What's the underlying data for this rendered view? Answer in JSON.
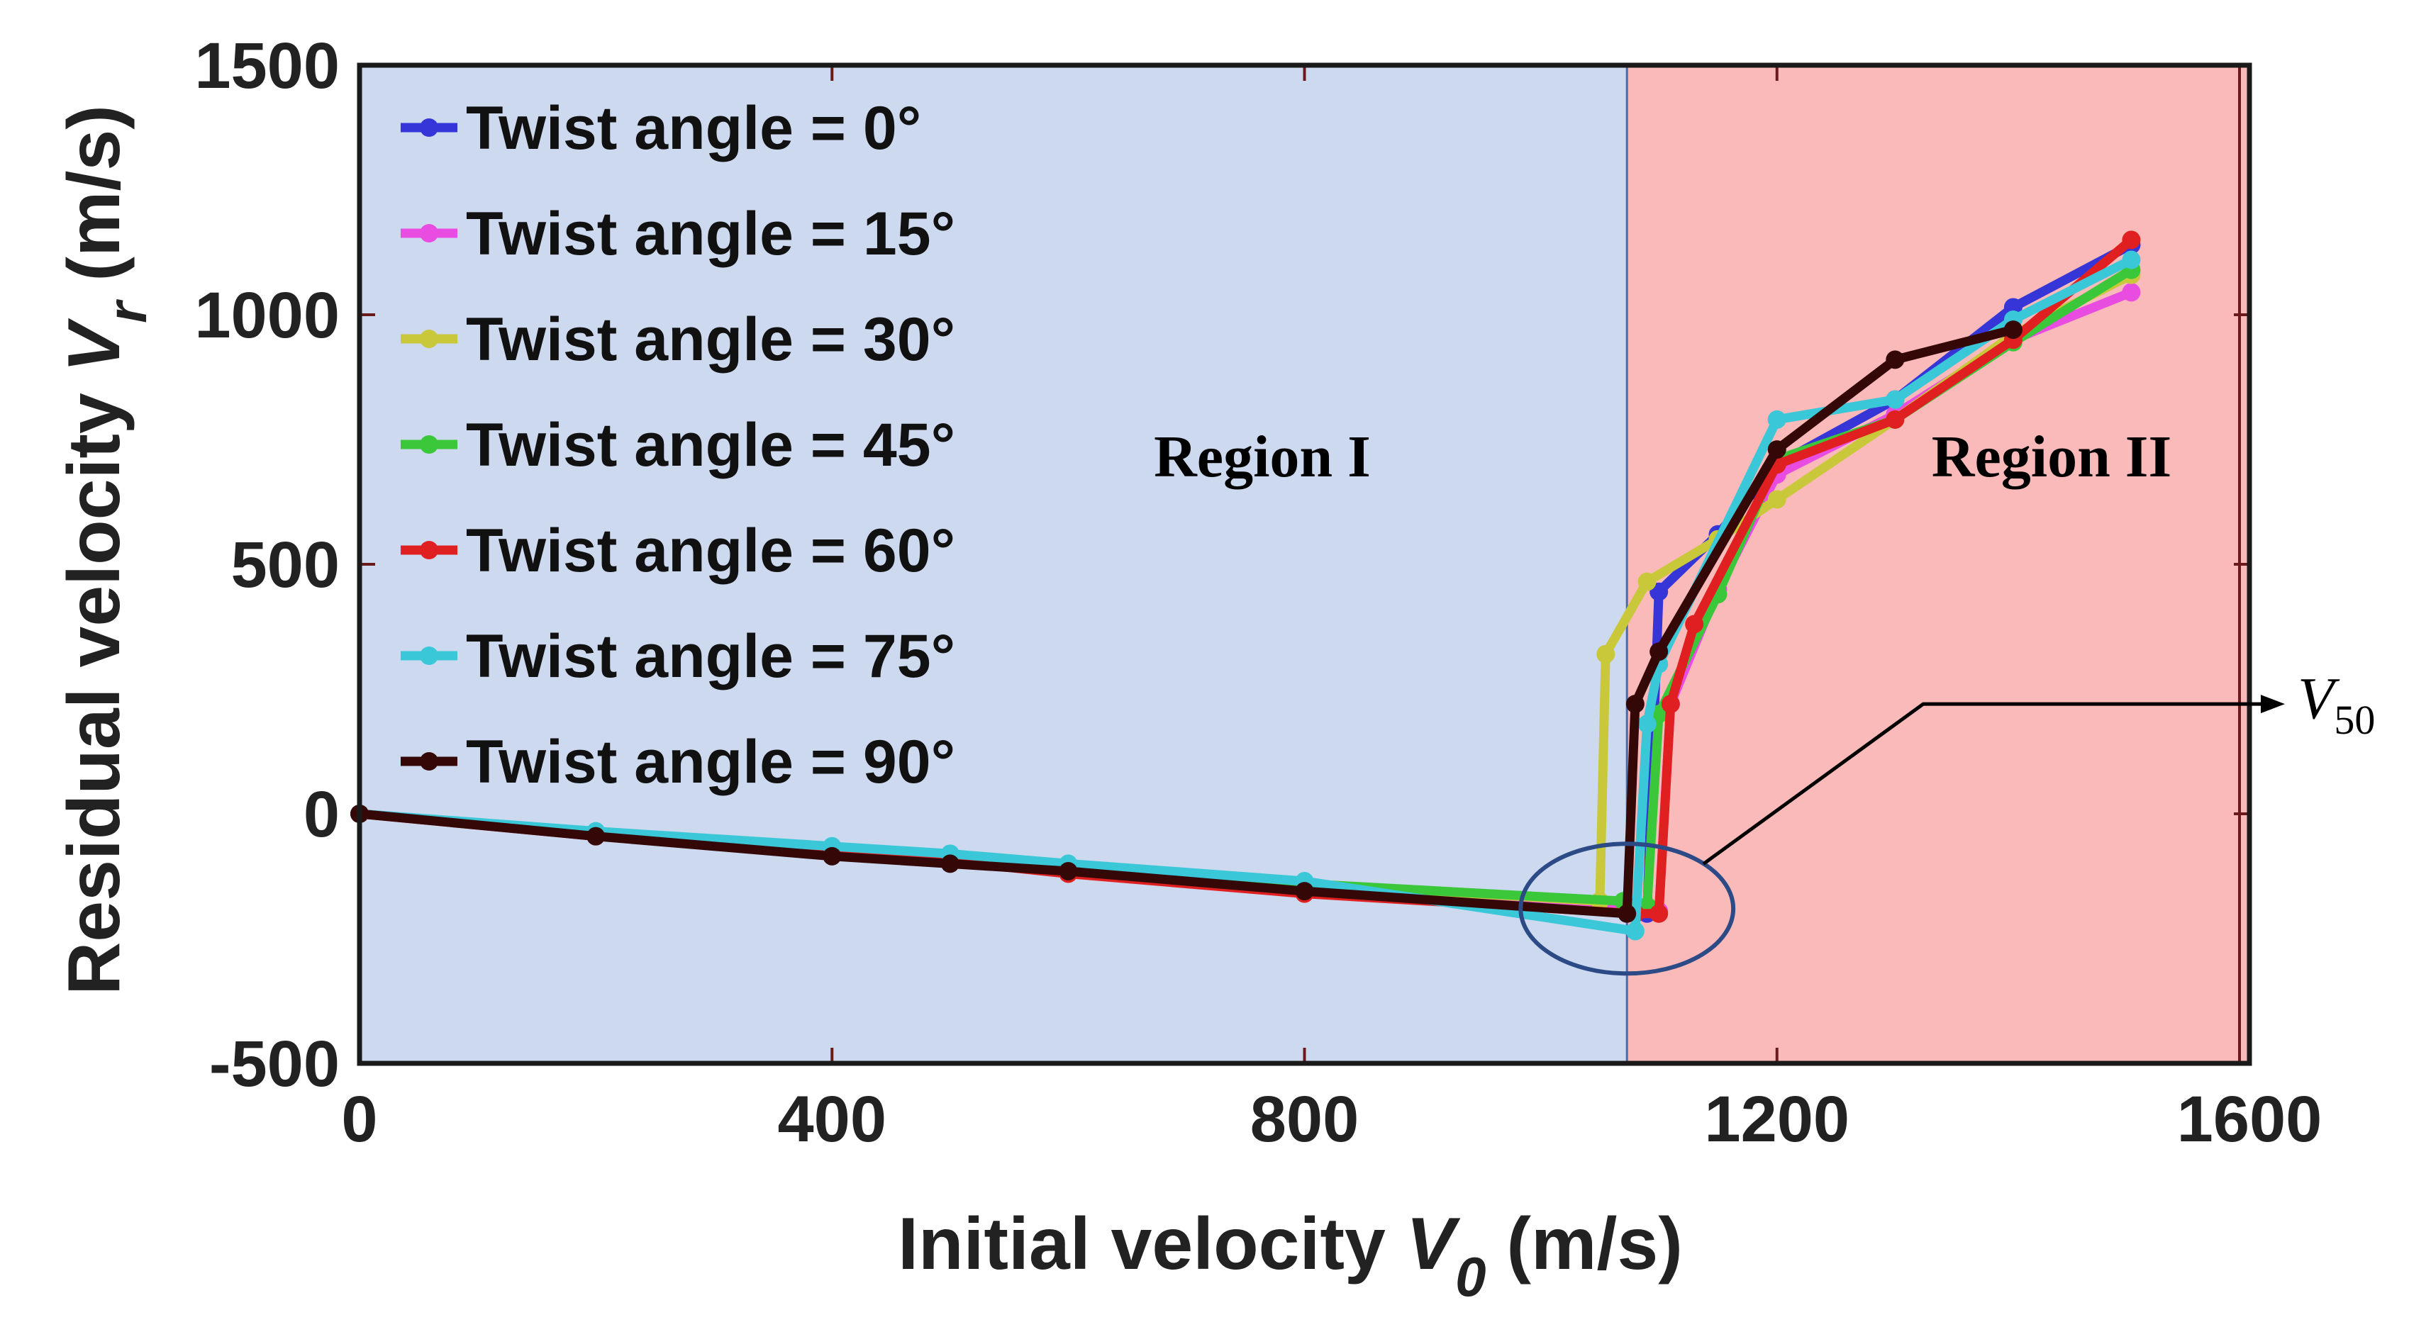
{
  "chart_data": {
    "type": "line",
    "title": "",
    "xlabel": {
      "prefix": "Initial velocity ",
      "symbol": "V",
      "subscript": "0",
      "suffix": " (m/s)"
    },
    "ylabel": {
      "prefix": "Residual velocity ",
      "symbol": "V",
      "subscript": "r",
      "suffix": " (m/s)"
    },
    "xlim": [
      0,
      1600
    ],
    "ylim": [
      -500,
      1500
    ],
    "xticks": [
      {
        "value": 0,
        "label": "0"
      },
      {
        "value": 400,
        "label": "400"
      },
      {
        "value": 800,
        "label": "800"
      },
      {
        "value": 1200,
        "label": "1200"
      },
      {
        "value": 1600,
        "label": "1600"
      }
    ],
    "yticks": [
      {
        "value": -500,
        "label": "-500"
      },
      {
        "value": 0,
        "label": "0"
      },
      {
        "value": 500,
        "label": "500"
      },
      {
        "value": 1000,
        "label": "1000"
      },
      {
        "value": 1500,
        "label": "1500"
      }
    ],
    "legend_position": "top-left",
    "regions": [
      {
        "label": "Region I",
        "x_start": 0,
        "x_end": 1073,
        "color": "#cdd9ef"
      },
      {
        "label": "Region II",
        "x_start": 1073,
        "x_end": 1600,
        "color": "#fbbaba"
      }
    ],
    "annotations": {
      "v50": {
        "symbol": "V",
        "subscript": "50",
        "ellipse_center": [
          1073,
          -190
        ],
        "ellipse_radius": [
          90,
          130
        ]
      }
    },
    "series": [
      {
        "name": "Twist angle = 0°",
        "color": "#3535d8",
        "x": [
          0,
          200,
          400,
          500,
          600,
          800,
          1080,
          1090,
          1100,
          1150,
          1200,
          1300,
          1400,
          1500
        ],
        "y": [
          0,
          -40,
          -75,
          -90,
          -105,
          -140,
          -195,
          -200,
          445,
          560,
          700,
          830,
          1015,
          1140
        ]
      },
      {
        "name": "Twist angle = 15°",
        "color": "#e84ce0",
        "x": [
          0,
          200,
          400,
          500,
          600,
          800,
          1080,
          1100,
          1110,
          1150,
          1200,
          1300,
          1400,
          1500
        ],
        "y": [
          0,
          -40,
          -75,
          -90,
          -110,
          -145,
          -195,
          -195,
          220,
          450,
          680,
          800,
          950,
          1045
        ]
      },
      {
        "name": "Twist angle = 30°",
        "color": "#c8c83a",
        "x": [
          0,
          200,
          400,
          500,
          600,
          800,
          1050,
          1055,
          1090,
          1150,
          1200,
          1300,
          1400,
          1500
        ],
        "y": [
          0,
          -40,
          -75,
          -90,
          -110,
          -140,
          -175,
          320,
          465,
          550,
          630,
          790,
          960,
          1080
        ]
      },
      {
        "name": "Twist angle = 45°",
        "color": "#3ac83a",
        "x": [
          0,
          200,
          400,
          500,
          600,
          800,
          1070,
          1090,
          1100,
          1150,
          1200,
          1300,
          1400,
          1500
        ],
        "y": [
          0,
          -40,
          -75,
          -90,
          -110,
          -140,
          -175,
          -185,
          200,
          440,
          710,
          790,
          945,
          1090
        ]
      },
      {
        "name": "Twist angle = 60°",
        "color": "#e02020",
        "x": [
          0,
          200,
          400,
          500,
          600,
          800,
          1080,
          1100,
          1110,
          1130,
          1200,
          1300,
          1400,
          1500
        ],
        "y": [
          0,
          -45,
          -80,
          -95,
          -120,
          -160,
          -200,
          -200,
          220,
          380,
          700,
          790,
          950,
          1150
        ]
      },
      {
        "name": "Twist angle = 75°",
        "color": "#3ac8d8",
        "x": [
          0,
          200,
          400,
          500,
          600,
          800,
          1080,
          1090,
          1100,
          1200,
          1300,
          1400,
          1500
        ],
        "y": [
          0,
          -35,
          -65,
          -80,
          -100,
          -135,
          -235,
          180,
          300,
          790,
          830,
          990,
          1110
        ]
      },
      {
        "name": "Twist angle = 90°",
        "color": "#350808",
        "x": [
          0,
          200,
          400,
          500,
          600,
          800,
          1073,
          1080,
          1100,
          1200,
          1300,
          1400
        ],
        "y": [
          0,
          -45,
          -85,
          -100,
          -115,
          -155,
          -200,
          220,
          325,
          730,
          910,
          970
        ]
      }
    ]
  }
}
